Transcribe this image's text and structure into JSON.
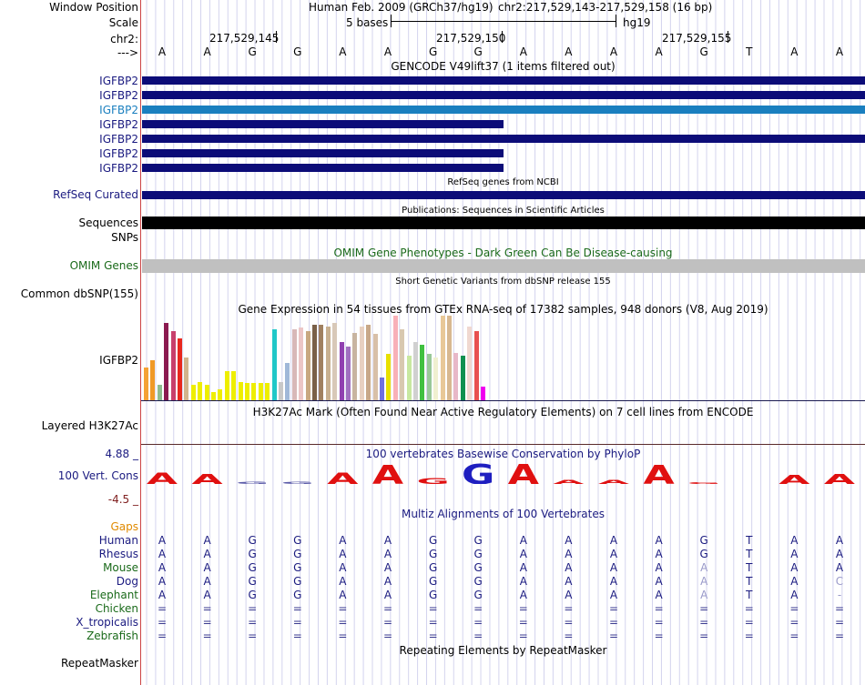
{
  "header": {
    "window_position_label": "Window Position",
    "scale_label": "Scale",
    "chr_label": "chr2:",
    "arrow_label": "--->",
    "assembly": "Human Feb. 2009 (GRCh37/hg19)",
    "position": "chr2:217,529,143-217,529,158 (16 bp)",
    "scale_text": "5 bases",
    "db": "hg19",
    "ticks": [
      "217,529,145",
      "217,529,150",
      "217,529,155"
    ]
  },
  "bases": [
    "A",
    "A",
    "G",
    "G",
    "A",
    "A",
    "G",
    "G",
    "A",
    "A",
    "A",
    "A",
    "G",
    "T",
    "A",
    "A"
  ],
  "gencode": {
    "title": "GENCODE V49lift37 (1 items filtered out)",
    "items": [
      {
        "label": "IGFBP2",
        "extent": "full",
        "color": "#0c0c78",
        "highlight": false
      },
      {
        "label": "IGFBP2",
        "extent": "full",
        "color": "#0c0c78",
        "highlight": false
      },
      {
        "label": "IGFBP2",
        "extent": "full",
        "color": "#1a7fbf",
        "highlight": true
      },
      {
        "label": "IGFBP2",
        "extent": "partial",
        "color": "#0c0c78",
        "highlight": false
      },
      {
        "label": "IGFBP2",
        "extent": "full",
        "color": "#0c0c78",
        "highlight": false
      },
      {
        "label": "IGFBP2",
        "extent": "partial",
        "color": "#0c0c78",
        "highlight": false
      },
      {
        "label": "IGFBP2",
        "extent": "partial",
        "color": "#0c0c78",
        "highlight": false
      }
    ]
  },
  "refseq": {
    "title": "RefSeq genes from NCBI",
    "label": "RefSeq Curated"
  },
  "publications": {
    "title": "Publications: Sequences in Scientific Articles",
    "label": "Sequences"
  },
  "snps_label": "SNPs",
  "omim": {
    "title": "OMIM Gene Phenotypes - Dark Green Can Be Disease-causing",
    "label": "OMIM Genes"
  },
  "dbsnp": {
    "title": "Short Genetic Variants from dbSNP release 155",
    "label": "Common dbSNP(155)"
  },
  "gtex": {
    "title": "Gene Expression in 54 tissues from GTEx RNA-seq of 17382 samples, 948 donors (V8, Aug 2019)",
    "label": "IGFBP2",
    "bars": [
      {
        "v": 0.42,
        "c": "#f4a234"
      },
      {
        "v": 0.52,
        "c": "#f09a26"
      },
      {
        "v": 0.2,
        "c": "#8fbc8f"
      },
      {
        "v": 1.0,
        "c": "#8b1a50"
      },
      {
        "v": 0.9,
        "c": "#c8406c"
      },
      {
        "v": 0.8,
        "c": "#e8281e"
      },
      {
        "v": 0.56,
        "c": "#d2b48c"
      },
      {
        "v": 0.2,
        "c": "#eeee00"
      },
      {
        "v": 0.24,
        "c": "#eeee00"
      },
      {
        "v": 0.2,
        "c": "#eeee00"
      },
      {
        "v": 0.11,
        "c": "#eeee00"
      },
      {
        "v": 0.14,
        "c": "#eeee00"
      },
      {
        "v": 0.38,
        "c": "#eeee00"
      },
      {
        "v": 0.38,
        "c": "#eeee00"
      },
      {
        "v": 0.24,
        "c": "#eeee00"
      },
      {
        "v": 0.22,
        "c": "#eeee00"
      },
      {
        "v": 0.22,
        "c": "#eeee00"
      },
      {
        "v": 0.22,
        "c": "#eeee00"
      },
      {
        "v": 0.22,
        "c": "#eeee00"
      },
      {
        "v": 0.92,
        "c": "#20c8c8"
      },
      {
        "v": 0.24,
        "c": "#c8c8c8"
      },
      {
        "v": 0.48,
        "c": "#a0b8d8"
      },
      {
        "v": 0.92,
        "c": "#d8b8b8"
      },
      {
        "v": 0.95,
        "c": "#ecc6c6"
      },
      {
        "v": 0.9,
        "c": "#c8a880"
      },
      {
        "v": 0.98,
        "c": "#7a6048"
      },
      {
        "v": 0.98,
        "c": "#a08060"
      },
      {
        "v": 0.96,
        "c": "#c8b090"
      },
      {
        "v": 1.0,
        "c": "#d8c8b8"
      },
      {
        "v": 0.76,
        "c": "#9040b0"
      },
      {
        "v": 0.7,
        "c": "#a070c0"
      },
      {
        "v": 0.88,
        "c": "#c8b4a0"
      },
      {
        "v": 0.96,
        "c": "#e8d0c0"
      },
      {
        "v": 0.98,
        "c": "#c8a888"
      },
      {
        "v": 0.86,
        "c": "#d8c0a8"
      },
      {
        "v": 0.3,
        "c": "#7070e0"
      },
      {
        "v": 0.6,
        "c": "#e8e000"
      },
      {
        "v": 1.1,
        "c": "#f8b0b8"
      },
      {
        "v": 0.92,
        "c": "#d8c8b0"
      },
      {
        "v": 0.58,
        "c": "#c8e8a0"
      },
      {
        "v": 0.76,
        "c": "#d0d0d0"
      },
      {
        "v": 0.72,
        "c": "#40c040"
      },
      {
        "v": 0.6,
        "c": "#98c898"
      },
      {
        "v": 0.56,
        "c": "#f0f0d0"
      },
      {
        "v": 1.1,
        "c": "#e8c898"
      },
      {
        "v": 1.1,
        "c": "#d8b890"
      },
      {
        "v": 0.62,
        "c": "#e8b8c8"
      },
      {
        "v": 0.58,
        "c": "#109050"
      },
      {
        "v": 0.96,
        "c": "#f0d8d0"
      },
      {
        "v": 0.9,
        "c": "#e85050"
      },
      {
        "v": 0.18,
        "c": "#f000f0"
      }
    ]
  },
  "h3k27ac": {
    "title": "H3K27Ac Mark (Often Found Near Active Regulatory Elements) on 7 cell lines from ENCODE",
    "label": "Layered H3K27Ac"
  },
  "conservation": {
    "title": "100 vertebrates Basewise Conservation by PhyloP",
    "label": "100 Vert. Cons",
    "max_label": "4.88 _",
    "min_label": "-4.5 _",
    "scores": [
      {
        "b": "A",
        "s": 0.55,
        "c": "#e01010"
      },
      {
        "b": "A",
        "s": 0.5,
        "c": "#e01010"
      },
      {
        "b": "G",
        "s": 0.12,
        "c": "#5a5aa8"
      },
      {
        "b": "G",
        "s": 0.12,
        "c": "#5a5aa8"
      },
      {
        "b": "A",
        "s": 0.55,
        "c": "#e01010"
      },
      {
        "b": "A",
        "s": 0.95,
        "c": "#e01010"
      },
      {
        "b": "G",
        "s": 0.3,
        "c": "#e01010"
      },
      {
        "b": "G",
        "s": 1.0,
        "c": "#1e1ec0"
      },
      {
        "b": "A",
        "s": 1.0,
        "c": "#e01010"
      },
      {
        "b": "A",
        "s": 0.2,
        "c": "#e01010"
      },
      {
        "b": "A",
        "s": 0.2,
        "c": "#e01010"
      },
      {
        "b": "A",
        "s": 0.95,
        "c": "#e01010"
      },
      {
        "b": "G",
        "s": 0.04,
        "c": "#e01010"
      },
      {
        "b": "T",
        "s": 0.0,
        "c": "#e01010"
      },
      {
        "b": "A",
        "s": 0.45,
        "c": "#e01010"
      },
      {
        "b": "A",
        "s": 0.5,
        "c": "#e01010"
      }
    ]
  },
  "multiz": {
    "title": "Multiz Alignments of 100 Vertebrates",
    "gaps_label": "Gaps",
    "species": [
      {
        "name": "Human",
        "color": "#1a1a80",
        "seq": [
          "A",
          "A",
          "G",
          "G",
          "A",
          "A",
          "G",
          "G",
          "A",
          "A",
          "A",
          "A",
          "G",
          "T",
          "A",
          "A"
        ],
        "dim": []
      },
      {
        "name": "Rhesus",
        "color": "#1a1a80",
        "seq": [
          "A",
          "A",
          "G",
          "G",
          "A",
          "A",
          "G",
          "G",
          "A",
          "A",
          "A",
          "A",
          "G",
          "T",
          "A",
          "A"
        ],
        "dim": []
      },
      {
        "name": "Mouse",
        "color": "#1a6a1a",
        "seq": [
          "A",
          "A",
          "G",
          "G",
          "A",
          "A",
          "G",
          "G",
          "A",
          "A",
          "A",
          "A",
          "A",
          "T",
          "A",
          "A"
        ],
        "dim": [
          12
        ]
      },
      {
        "name": "Dog",
        "color": "#1a1a80",
        "seq": [
          "A",
          "A",
          "G",
          "G",
          "A",
          "A",
          "G",
          "G",
          "A",
          "A",
          "A",
          "A",
          "A",
          "T",
          "A",
          "C"
        ],
        "dim": [
          12,
          15
        ]
      },
      {
        "name": "Elephant",
        "color": "#1a6a1a",
        "seq": [
          "A",
          "A",
          "G",
          "G",
          "A",
          "A",
          "G",
          "G",
          "A",
          "A",
          "A",
          "A",
          "A",
          "T",
          "A",
          "-"
        ],
        "dim": [
          12,
          15
        ]
      },
      {
        "name": "Chicken",
        "color": "#1a6a1a",
        "seq": [
          "=",
          "=",
          "=",
          "=",
          "=",
          "=",
          "=",
          "=",
          "=",
          "=",
          "=",
          "=",
          "=",
          "=",
          "=",
          "="
        ],
        "dim": []
      },
      {
        "name": "X_tropicalis",
        "color": "#1a1a80",
        "seq": [
          "=",
          "=",
          "=",
          "=",
          "=",
          "=",
          "=",
          "=",
          "=",
          "=",
          "=",
          "=",
          "=",
          "=",
          "=",
          "="
        ],
        "dim": []
      },
      {
        "name": "Zebrafish",
        "color": "#1a6a1a",
        "seq": [
          "=",
          "=",
          "=",
          "=",
          "=",
          "=",
          "=",
          "=",
          "=",
          "=",
          "=",
          "=",
          "=",
          "=",
          "=",
          "="
        ],
        "dim": []
      }
    ]
  },
  "repeatmasker": {
    "title": "Repeating Elements by RepeatMasker",
    "label": "RepeatMasker"
  }
}
